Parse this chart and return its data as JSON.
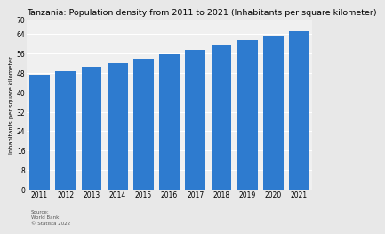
{
  "title": "Tanzania: Population density from 2011 to 2021 (Inhabitants per square kilometer)",
  "years": [
    "2011",
    "2012",
    "2013",
    "2014",
    "2015",
    "2016",
    "2017",
    "2018",
    "2019",
    "2020",
    "2021"
  ],
  "values": [
    47.2,
    48.8,
    50.5,
    52.2,
    54.0,
    55.8,
    57.6,
    59.5,
    61.5,
    63.2,
    65.3
  ],
  "bar_color": "#2e7bcf",
  "bg_color": "#e8e8e8",
  "plot_bg_color": "#f0f0f0",
  "ylim": [
    0,
    70
  ],
  "yticks": [
    0,
    8,
    16,
    24,
    32,
    40,
    48,
    56,
    64,
    70
  ],
  "ylabel": "Inhabitants per square kilometer",
  "title_fontsize": 6.8,
  "tick_fontsize": 5.5,
  "ylabel_fontsize": 4.8,
  "source_text": "Source:\nWorld Bank\n© Statista 2022"
}
